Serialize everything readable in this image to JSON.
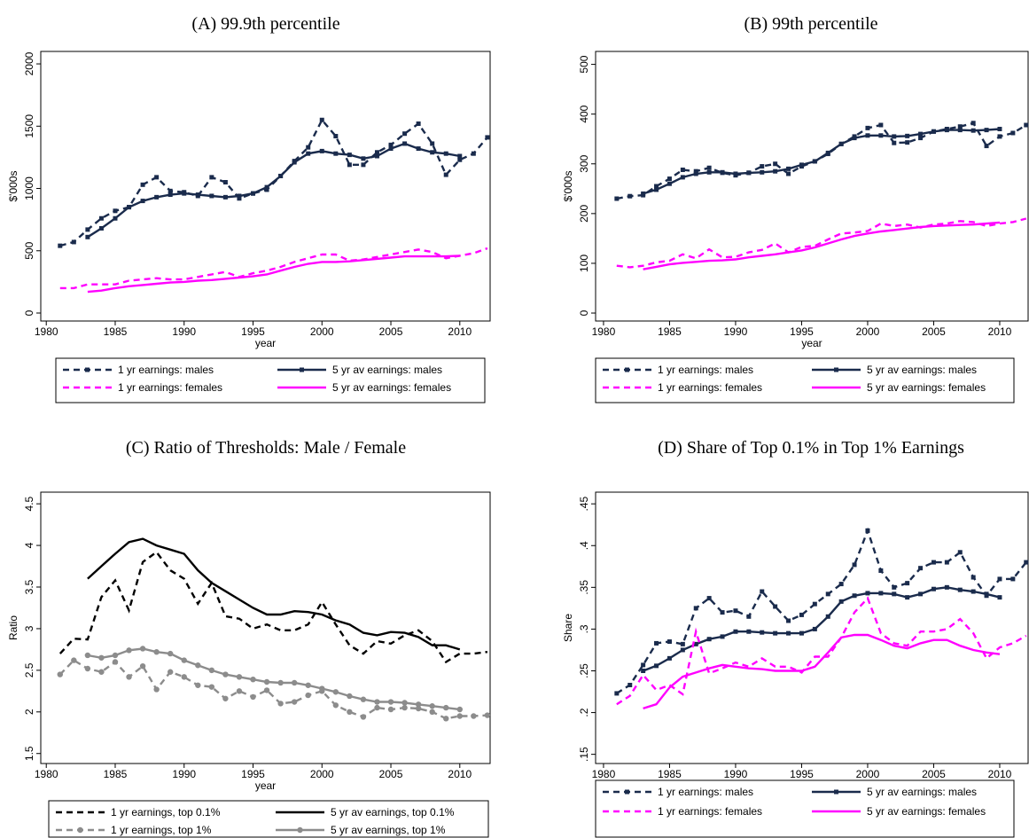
{
  "chart_data": [
    {
      "type": "line",
      "title": "(A) 99.9th percentile",
      "xlabel": "year",
      "ylabel": "$'000s",
      "x": [
        1981,
        1982,
        1983,
        1984,
        1985,
        1986,
        1987,
        1988,
        1989,
        1990,
        1991,
        1992,
        1993,
        1994,
        1995,
        1996,
        1997,
        1998,
        1999,
        2000,
        2001,
        2002,
        2003,
        2004,
        2005,
        2006,
        2007,
        2008,
        2009,
        2010,
        2011,
        2012
      ],
      "xlim": [
        1979.6,
        2012.2
      ],
      "xticks": [
        1980,
        1985,
        1990,
        1995,
        2000,
        2005,
        2010
      ],
      "ylim": [
        -64,
        2100
      ],
      "yticks": [
        0,
        500,
        1000,
        1500,
        2000
      ],
      "series": [
        {
          "name": "1 yr earnings: males",
          "color": "#1a2b4c",
          "dash": true,
          "marker": "square",
          "values": [
            540,
            570,
            670,
            760,
            820,
            850,
            1030,
            1090,
            980,
            970,
            940,
            1090,
            1050,
            920,
            960,
            990,
            1100,
            1220,
            1330,
            1550,
            1420,
            1190,
            1190,
            1290,
            1350,
            1440,
            1520,
            1360,
            1110,
            1230,
            1280,
            1410
          ]
        },
        {
          "name": "5 yr av earnings: males",
          "color": "#1a2b4c",
          "dash": false,
          "marker": "square",
          "values": [
            null,
            null,
            610,
            680,
            760,
            850,
            900,
            930,
            950,
            960,
            950,
            940,
            930,
            940,
            960,
            1010,
            1100,
            1210,
            1280,
            1300,
            1280,
            1270,
            1240,
            1260,
            1320,
            1360,
            1320,
            1290,
            1280,
            1260,
            null,
            null
          ]
        },
        {
          "name": "1 yr earnings: females",
          "color": "#ff00ff",
          "dash": true,
          "marker": "none",
          "values": [
            200,
            200,
            230,
            230,
            230,
            260,
            270,
            280,
            270,
            270,
            290,
            310,
            330,
            290,
            320,
            340,
            370,
            410,
            440,
            470,
            470,
            420,
            430,
            450,
            470,
            490,
            510,
            490,
            440,
            460,
            480,
            520
          ]
        },
        {
          "name": "5 yr av earnings: females",
          "color": "#ff00ff",
          "dash": false,
          "marker": "none",
          "values": [
            null,
            null,
            170,
            180,
            200,
            215,
            225,
            235,
            245,
            250,
            260,
            265,
            275,
            285,
            295,
            310,
            340,
            370,
            395,
            410,
            410,
            415,
            425,
            435,
            445,
            455,
            455,
            455,
            455,
            460,
            null,
            null
          ]
        }
      ]
    },
    {
      "type": "line",
      "title": "(B) 99th percentile",
      "xlabel": "year",
      "ylabel": "$'000s",
      "x": [
        1981,
        1982,
        1983,
        1984,
        1985,
        1986,
        1987,
        1988,
        1989,
        1990,
        1991,
        1992,
        1993,
        1994,
        1995,
        1996,
        1997,
        1998,
        1999,
        2000,
        2001,
        2002,
        2003,
        2004,
        2005,
        2006,
        2007,
        2008,
        2009,
        2010,
        2011,
        2012
      ],
      "xlim": [
        1979.4,
        2012.15
      ],
      "xticks": [
        1980,
        1985,
        1990,
        1995,
        2000,
        2005,
        2010
      ],
      "ylim": [
        -16,
        526
      ],
      "yticks": [
        0,
        100,
        200,
        300,
        400,
        500
      ],
      "series": [
        {
          "name": "1 yr earnings: males",
          "color": "#1a2b4c",
          "dash": true,
          "marker": "square",
          "values": [
            230,
            235,
            237,
            255,
            270,
            288,
            285,
            292,
            282,
            277,
            282,
            295,
            300,
            280,
            295,
            305,
            320,
            340,
            355,
            372,
            378,
            342,
            343,
            352,
            365,
            370,
            375,
            382,
            336,
            355,
            362,
            378
          ]
        },
        {
          "name": "5 yr av earnings: males",
          "color": "#1a2b4c",
          "dash": false,
          "marker": "square",
          "values": [
            null,
            null,
            240,
            248,
            260,
            273,
            280,
            283,
            283,
            280,
            282,
            283,
            285,
            290,
            298,
            305,
            322,
            340,
            352,
            357,
            357,
            355,
            356,
            360,
            365,
            368,
            368,
            367,
            368,
            370,
            null,
            null
          ]
        },
        {
          "name": "1 yr earnings: females",
          "color": "#ff00ff",
          "dash": true,
          "marker": "none",
          "values": [
            95,
            92,
            95,
            102,
            105,
            118,
            110,
            128,
            112,
            113,
            122,
            127,
            140,
            122,
            133,
            135,
            148,
            160,
            162,
            165,
            180,
            175,
            178,
            172,
            178,
            180,
            185,
            183,
            175,
            180,
            183,
            190
          ]
        },
        {
          "name": "5 yr av earnings: females",
          "color": "#ff00ff",
          "dash": false,
          "marker": "none",
          "values": [
            null,
            null,
            88,
            93,
            98,
            101,
            103,
            105,
            106,
            108,
            112,
            115,
            118,
            122,
            126,
            132,
            140,
            148,
            155,
            160,
            164,
            167,
            170,
            173,
            175,
            176,
            177,
            178,
            180,
            182,
            null,
            null
          ]
        }
      ]
    },
    {
      "type": "line",
      "title": "(C) Ratio of Thresholds: Male / Female",
      "xlabel": "year",
      "ylabel": "Ratio",
      "x": [
        1981,
        1982,
        1983,
        1984,
        1985,
        1986,
        1987,
        1988,
        1989,
        1990,
        1991,
        1992,
        1993,
        1994,
        1995,
        1996,
        1997,
        1998,
        1999,
        2000,
        2001,
        2002,
        2003,
        2004,
        2005,
        2006,
        2007,
        2008,
        2009,
        2010,
        2011,
        2012
      ],
      "xlim": [
        1979.6,
        2012.2
      ],
      "xticks": [
        1980,
        1985,
        1990,
        1995,
        2000,
        2005,
        2010
      ],
      "ylim": [
        1.38,
        4.64
      ],
      "yticks": [
        1.5,
        2,
        2.5,
        3,
        3.5,
        4,
        4.5
      ],
      "series": [
        {
          "name": "1 yr earnings, top 0.1%",
          "color": "#000000",
          "dash": true,
          "marker": "none",
          "values": [
            2.7,
            2.88,
            2.87,
            3.38,
            3.58,
            3.22,
            3.8,
            3.92,
            3.7,
            3.6,
            3.3,
            3.55,
            3.15,
            3.12,
            3.0,
            3.05,
            2.98,
            2.98,
            3.05,
            3.32,
            3.05,
            2.8,
            2.7,
            2.85,
            2.82,
            2.92,
            2.98,
            2.85,
            2.6,
            2.7,
            2.7,
            2.72
          ]
        },
        {
          "name": "5 yr av earnings, top 0.1%",
          "color": "#000000",
          "dash": false,
          "marker": "none",
          "values": [
            null,
            null,
            3.6,
            3.75,
            3.9,
            4.04,
            4.08,
            4.0,
            3.95,
            3.9,
            3.7,
            3.55,
            3.45,
            3.35,
            3.25,
            3.17,
            3.17,
            3.21,
            3.2,
            3.17,
            3.1,
            3.05,
            2.95,
            2.92,
            2.96,
            2.95,
            2.9,
            2.8,
            2.8,
            2.75,
            null,
            null
          ]
        },
        {
          "name": "1 yr earnings, top 1%",
          "color": "#8c8c8c",
          "dash": true,
          "marker": "circle",
          "values": [
            2.45,
            2.62,
            2.52,
            2.48,
            2.6,
            2.42,
            2.55,
            2.27,
            2.48,
            2.42,
            2.32,
            2.3,
            2.16,
            2.25,
            2.18,
            2.26,
            2.1,
            2.12,
            2.2,
            2.25,
            2.08,
            2.0,
            1.94,
            2.05,
            2.03,
            2.05,
            2.04,
            2.0,
            1.92,
            1.95,
            1.95,
            1.96
          ]
        },
        {
          "name": "5 yr av earnings, top 1%",
          "color": "#8c8c8c",
          "dash": false,
          "marker": "circle",
          "values": [
            null,
            null,
            2.68,
            2.65,
            2.68,
            2.74,
            2.76,
            2.72,
            2.7,
            2.62,
            2.56,
            2.5,
            2.45,
            2.42,
            2.39,
            2.36,
            2.35,
            2.35,
            2.32,
            2.28,
            2.24,
            2.19,
            2.15,
            2.12,
            2.12,
            2.11,
            2.09,
            2.07,
            2.05,
            2.03,
            null,
            null
          ]
        }
      ]
    },
    {
      "type": "line",
      "title": "(D) Share of Top 0.1% in Top 1% Earnings",
      "xlabel": "year",
      "ylabel": "Share",
      "x": [
        1981,
        1982,
        1983,
        1984,
        1985,
        1986,
        1987,
        1988,
        1989,
        1990,
        1991,
        1992,
        1993,
        1994,
        1995,
        1996,
        1997,
        1998,
        1999,
        2000,
        2001,
        2002,
        2003,
        2004,
        2005,
        2006,
        2007,
        2008,
        2009,
        2010,
        2011,
        2012
      ],
      "xlim": [
        1979.4,
        2012.15
      ],
      "xticks": [
        1980,
        1985,
        1990,
        1995,
        2000,
        2005,
        2010
      ],
      "ylim": [
        0.139,
        0.464
      ],
      "yticks": [
        {
          "value": 0.15,
          "label": ".15"
        },
        {
          "value": 0.2,
          "label": ".2"
        },
        {
          "value": 0.25,
          "label": ".25"
        },
        {
          "value": 0.3,
          "label": ".3"
        },
        {
          "value": 0.35,
          "label": ".35"
        },
        {
          "value": 0.4,
          "label": ".4"
        },
        {
          "value": 0.45,
          "label": ".45"
        }
      ],
      "series": [
        {
          "name": "1 yr earnings: males",
          "color": "#1a2b4c",
          "dash": true,
          "marker": "square",
          "values": [
            0.223,
            0.233,
            0.257,
            0.283,
            0.285,
            0.282,
            0.325,
            0.337,
            0.32,
            0.322,
            0.315,
            0.345,
            0.327,
            0.31,
            0.317,
            0.33,
            0.342,
            0.354,
            0.377,
            0.418,
            0.37,
            0.35,
            0.355,
            0.373,
            0.38,
            0.38,
            0.392,
            0.362,
            0.34,
            0.36,
            0.36,
            0.38
          ]
        },
        {
          "name": "5 yr av earnings: males",
          "color": "#1a2b4c",
          "dash": false,
          "marker": "square",
          "values": [
            null,
            null,
            0.25,
            0.256,
            0.265,
            0.275,
            0.282,
            0.288,
            0.291,
            0.297,
            0.297,
            0.296,
            0.295,
            0.295,
            0.295,
            0.3,
            0.315,
            0.333,
            0.34,
            0.343,
            0.343,
            0.342,
            0.338,
            0.342,
            0.348,
            0.35,
            0.347,
            0.345,
            0.342,
            0.338,
            null,
            null
          ]
        },
        {
          "name": "1 yr earnings: females",
          "color": "#ff00ff",
          "dash": true,
          "marker": "none",
          "values": [
            0.21,
            0.22,
            0.245,
            0.227,
            0.233,
            0.222,
            0.297,
            0.247,
            0.253,
            0.26,
            0.255,
            0.265,
            0.255,
            0.255,
            0.248,
            0.267,
            0.267,
            0.29,
            0.32,
            0.337,
            0.295,
            0.283,
            0.28,
            0.297,
            0.297,
            0.3,
            0.312,
            0.295,
            0.265,
            0.278,
            0.283,
            0.292
          ]
        },
        {
          "name": "5 yr av earnings: females",
          "color": "#ff00ff",
          "dash": false,
          "marker": "none",
          "values": [
            null,
            null,
            0.205,
            0.21,
            0.23,
            0.243,
            0.248,
            0.253,
            0.257,
            0.255,
            0.253,
            0.252,
            0.25,
            0.25,
            0.25,
            0.255,
            0.272,
            0.29,
            0.293,
            0.293,
            0.287,
            0.28,
            0.277,
            0.283,
            0.287,
            0.287,
            0.28,
            0.275,
            0.272,
            0.27,
            null,
            null
          ]
        }
      ]
    }
  ]
}
